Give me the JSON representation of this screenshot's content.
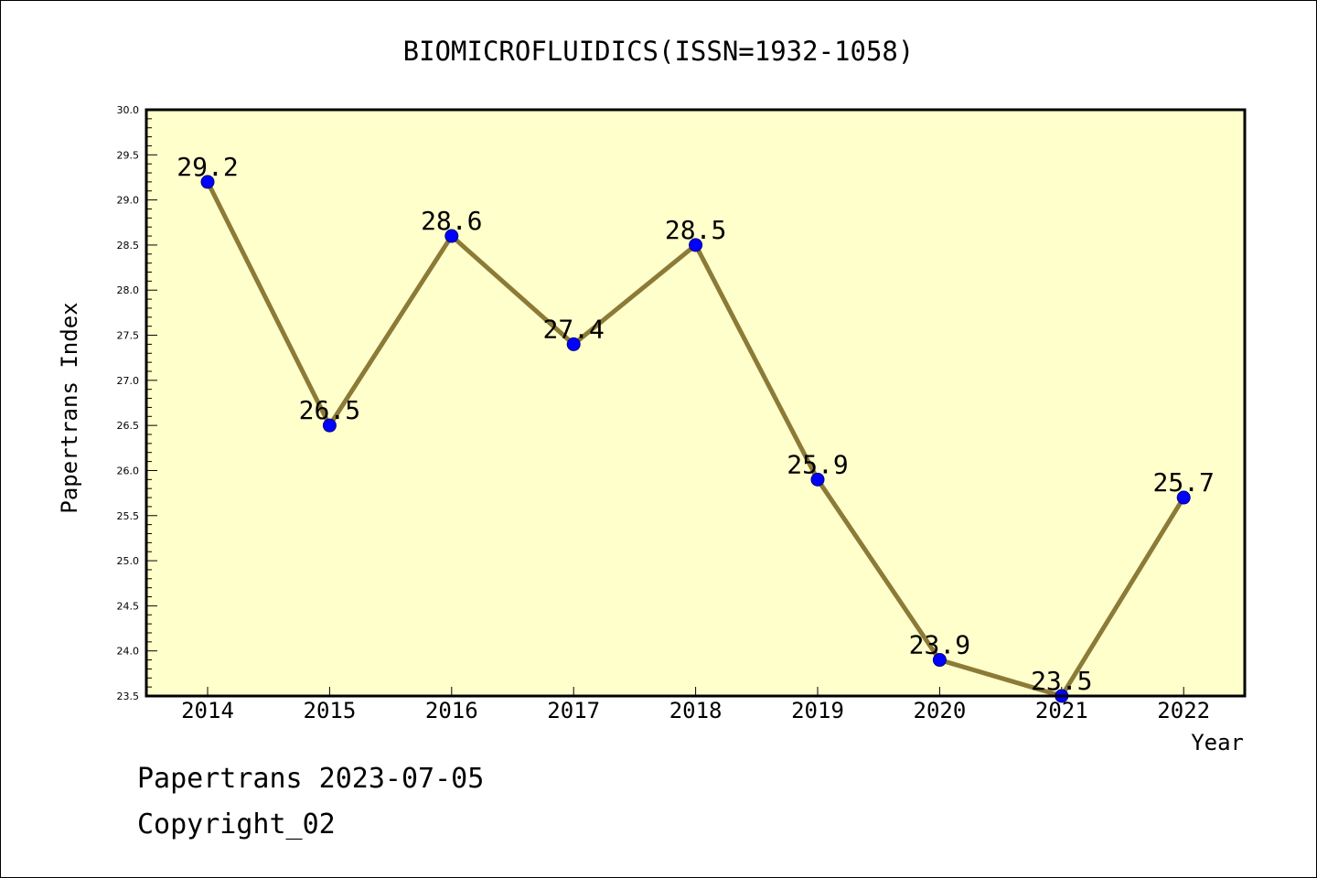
{
  "colors": {
    "plot_background": "#ffffcc",
    "line": "#8c7a37",
    "marker": "#0000ff",
    "marker_edge": "#000080",
    "axis": "#000000"
  },
  "footer": {
    "source_line": "Papertrans 2023-07-05",
    "copyright_line": "Copyright_02"
  },
  "chart_data": {
    "type": "line",
    "title": "BIOMICROFLUIDICS(ISSN=1932-1058)",
    "xlabel": "Year",
    "ylabel": "Papertrans Index",
    "categories": [
      "2014",
      "2015",
      "2016",
      "2017",
      "2018",
      "2019",
      "2020",
      "2021",
      "2022"
    ],
    "series": [
      {
        "values": [
          29.2,
          26.5,
          28.6,
          27.4,
          28.5,
          25.9,
          23.9,
          23.5,
          25.7
        ],
        "data_labels": [
          "29.2",
          "26.5",
          "28.6",
          "27.4",
          "28.5",
          "25.9",
          "23.9",
          "23.5",
          "25.7"
        ]
      }
    ],
    "ylim": [
      23.5,
      30.0
    ],
    "yticks": [
      "23.5",
      "24.0",
      "24.5",
      "25.0",
      "25.5",
      "26.0",
      "26.5",
      "27.0",
      "27.5",
      "28.0",
      "28.5",
      "29.0",
      "29.5",
      "30.0"
    ],
    "grid": false,
    "legend": "none"
  }
}
